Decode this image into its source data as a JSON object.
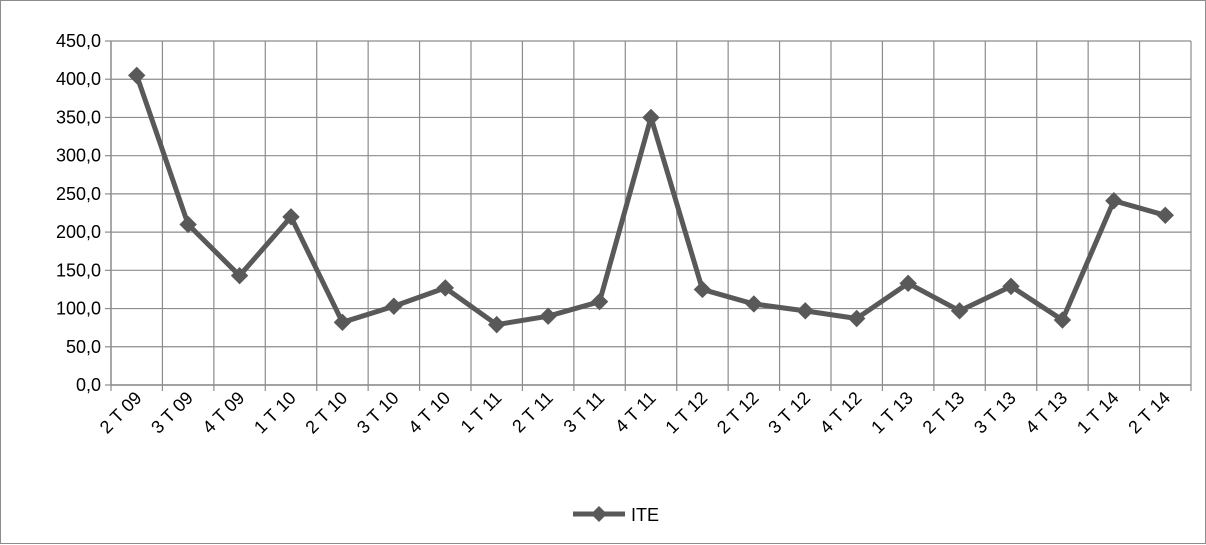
{
  "chart_data": {
    "type": "line",
    "categories": [
      "2 T 09",
      "3 T 09",
      "4 T 09",
      "1 T 10",
      "2 T 10",
      "3 T 10",
      "4 T 10",
      "1 T 11",
      "2 T 11",
      "3 T 11",
      "4 T 11",
      "1 T 12",
      "2 T 12",
      "3 T 12",
      "4 T 12",
      "1 T 13",
      "2 T 13",
      "3 T 13",
      "4 T 13",
      "1 T 14",
      "2 T 14"
    ],
    "series": [
      {
        "name": "ITE",
        "color": "#595959",
        "marker": "diamond",
        "values": [
          405,
          210,
          143,
          220,
          82,
          103,
          127,
          79,
          90,
          109,
          350,
          125,
          106,
          97,
          87,
          133,
          97,
          129,
          85,
          241,
          222
        ]
      }
    ],
    "ylim": [
      0,
      450
    ],
    "yticks": [
      "0,0",
      "50,0",
      "100,0",
      "150,0",
      "200,0",
      "250,0",
      "300,0",
      "350,0",
      "400,0",
      "450,0"
    ],
    "ytick_values": [
      0,
      50,
      100,
      150,
      200,
      250,
      300,
      350,
      400,
      450
    ],
    "grid": "both",
    "legend_position": "bottom-center",
    "gridline_color": "#8c8c8c"
  }
}
